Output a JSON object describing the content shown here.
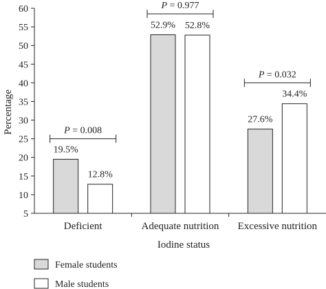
{
  "chart_data": {
    "type": "bar",
    "xlabel": "Iodine status",
    "ylabel": "Percentage",
    "ylim": [
      5,
      60
    ],
    "yticks": [
      5,
      10,
      15,
      20,
      25,
      30,
      35,
      40,
      45,
      50,
      55,
      60
    ],
    "grid": false,
    "legend_position": "bottom-left",
    "categories": [
      "Deficient",
      "Adequate nutrition",
      "Excessive nutrition"
    ],
    "series": [
      {
        "name": "Female students",
        "values": [
          19.5,
          52.9,
          27.6
        ],
        "labels": [
          "19.5%",
          "52.9%",
          "27.6%"
        ],
        "color": "#d9d9d9"
      },
      {
        "name": "Male students",
        "values": [
          12.8,
          52.8,
          34.4
        ],
        "labels": [
          "12.8%",
          "52.8%",
          "34.4%"
        ],
        "color": "#ffffff"
      }
    ],
    "p_values": [
      {
        "category": "Deficient",
        "text": "P = 0.008",
        "value": 25
      },
      {
        "category": "Adequate nutrition",
        "text": "P = 0.977",
        "value": 58.5
      },
      {
        "category": "Excessive nutrition",
        "text": "P = 0.032",
        "value": 40
      }
    ]
  }
}
